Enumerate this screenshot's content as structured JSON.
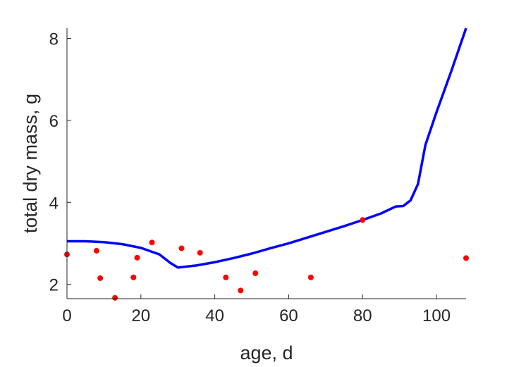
{
  "chart_data": {
    "type": "scatter",
    "xlabel": "age, d",
    "ylabel": "total dry mass, g",
    "xlim": [
      0,
      108
    ],
    "ylim": [
      1.65,
      8.25
    ],
    "xticks": [
      0,
      20,
      40,
      60,
      80,
      100
    ],
    "yticks": [
      2,
      4,
      6,
      8
    ],
    "grid": false,
    "legend": "none",
    "series": [
      {
        "type": "scatter",
        "color": "#ff0000",
        "x": [
          0,
          8,
          9,
          13,
          18,
          19,
          23,
          31,
          36,
          43,
          47,
          51,
          66,
          80,
          108
        ],
        "y": [
          2.73,
          2.82,
          2.15,
          1.67,
          2.17,
          2.65,
          3.02,
          2.88,
          2.77,
          2.17,
          1.85,
          2.27,
          2.17,
          3.57,
          2.64
        ]
      },
      {
        "type": "line",
        "color": "#0000ff",
        "x": [
          0,
          5,
          10,
          15,
          20,
          25,
          28,
          30,
          35,
          40,
          45,
          50,
          55,
          60,
          65,
          70,
          75,
          80,
          85,
          89,
          91,
          93,
          95,
          97,
          100,
          104,
          108
        ],
        "y": [
          3.05,
          3.05,
          3.03,
          2.98,
          2.89,
          2.73,
          2.52,
          2.41,
          2.46,
          2.54,
          2.64,
          2.75,
          2.88,
          3.0,
          3.14,
          3.28,
          3.42,
          3.57,
          3.73,
          3.9,
          3.91,
          4.05,
          4.45,
          5.4,
          6.2,
          7.2,
          8.25
        ]
      }
    ]
  }
}
